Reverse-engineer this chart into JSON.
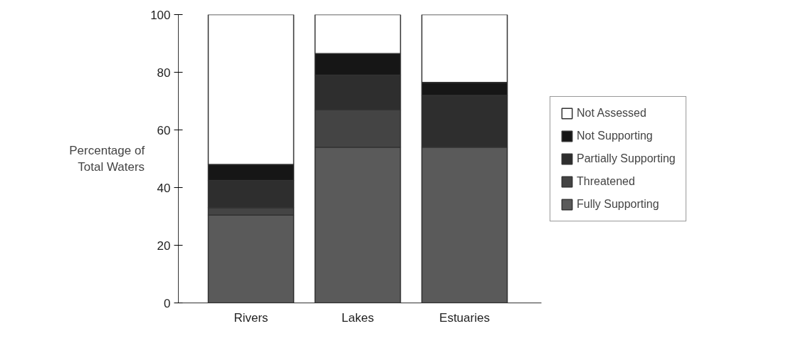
{
  "chart_data": {
    "type": "bar",
    "stacked": true,
    "ylabel": "Percentage of\nTotal Waters",
    "categories": [
      "Rivers",
      "Lakes",
      "Estuaries"
    ],
    "series": [
      {
        "name": "Fully Supporting",
        "color": "#5a5a5a",
        "values": [
          30.5,
          54,
          54
        ]
      },
      {
        "name": "Threatened",
        "color": "#444444",
        "values": [
          2.5,
          13,
          0
        ]
      },
      {
        "name": "Partially Supporting",
        "color": "#2e2e2e",
        "values": [
          9.5,
          12,
          18
        ]
      },
      {
        "name": "Not Supporting",
        "color": "#161616",
        "values": [
          5.5,
          7.5,
          4.5
        ]
      },
      {
        "name": "Not Assessed",
        "color": "#ffffff",
        "values": [
          52,
          13.5,
          23.5
        ]
      }
    ],
    "ylim": [
      0,
      100
    ],
    "yticks": [
      0,
      20,
      40,
      60,
      80,
      100
    ],
    "grid": false,
    "legend": "right"
  }
}
